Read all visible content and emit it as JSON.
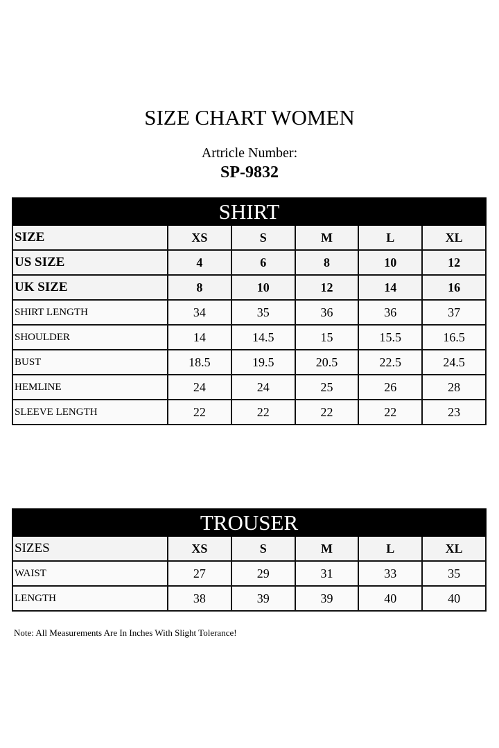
{
  "title": "SIZE CHART WOMEN",
  "article_label": "Artricle Number:",
  "article_number": "SP-9832",
  "shirt": {
    "heading": "SHIRT",
    "header_rows": [
      [
        "SIZE",
        "XS",
        "S",
        "M",
        "L",
        "XL"
      ],
      [
        "US SIZE",
        "4",
        "6",
        "8",
        "10",
        "12"
      ],
      [
        "UK SIZE",
        "8",
        "10",
        "12",
        "14",
        "16"
      ]
    ],
    "rows": [
      [
        "SHIRT LENGTH",
        "34",
        "35",
        "36",
        "36",
        "37"
      ],
      [
        "SHOULDER",
        "14",
        "14.5",
        "15",
        "15.5",
        "16.5"
      ],
      [
        "BUST",
        "18.5",
        "19.5",
        "20.5",
        "22.5",
        "24.5"
      ],
      [
        "HEMLINE",
        "24",
        "24",
        "25",
        "26",
        "28"
      ],
      [
        "SLEEVE LENGTH",
        "22",
        "22",
        "22",
        "22",
        "23"
      ]
    ]
  },
  "trouser": {
    "heading": "TROUSER",
    "header_row": [
      "SIZES",
      "XS",
      "S",
      "M",
      "L",
      "XL"
    ],
    "rows": [
      [
        "WAIST",
        "27",
        "29",
        "31",
        "33",
        "35"
      ],
      [
        "LENGTH",
        "38",
        "39",
        "39",
        "40",
        "40"
      ]
    ]
  },
  "note": "Note: All Measurements Are In Inches With Slight Tolerance!"
}
